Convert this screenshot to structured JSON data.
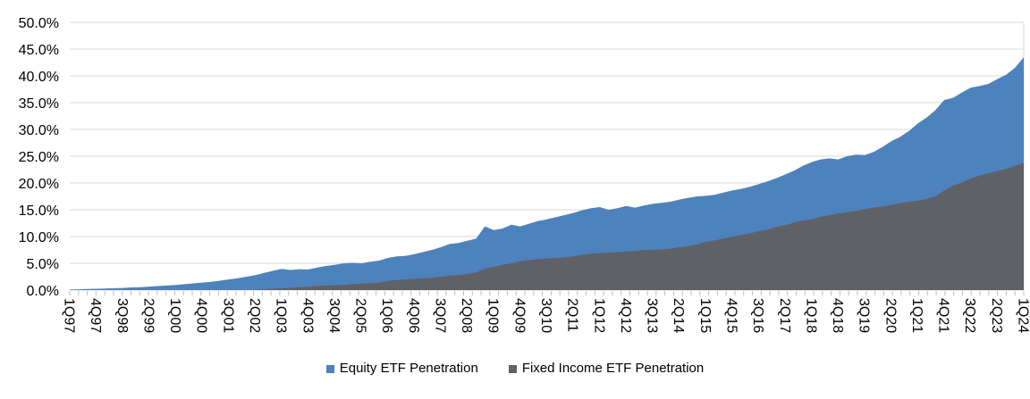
{
  "chart_data": {
    "type": "area",
    "title": "",
    "xlabel": "",
    "ylabel": "",
    "ylim": [
      0,
      50
    ],
    "grid": true,
    "legend_position": "bottom-center",
    "overlap_mode": "overlapping (not stacked); Fixed Income area drawn in front of Equity area",
    "colors": {
      "equity": "#4D82BC",
      "fixed_income": "#5F6166",
      "gridline": "#D9D9D9",
      "tick": "#BFBFBF",
      "text": "#000000",
      "background": "#FFFFFF"
    },
    "y_tick_labels": [
      "0.0%",
      "5.0%",
      "10.0%",
      "15.0%",
      "20.0%",
      "25.0%",
      "30.0%",
      "35.0%",
      "40.0%",
      "45.0%",
      "50.0%"
    ],
    "x_tick_labels_shown": [
      "1Q97",
      "4Q97",
      "3Q98",
      "2Q99",
      "1Q00",
      "4Q00",
      "3Q01",
      "2Q02",
      "1Q03",
      "4Q03",
      "3Q04",
      "2Q05",
      "1Q06",
      "4Q06",
      "3Q07",
      "2Q08",
      "1Q09",
      "4Q09",
      "3Q10",
      "2Q11",
      "1Q12",
      "4Q12",
      "3Q13",
      "2Q14",
      "1Q15",
      "4Q15",
      "3Q16",
      "2Q17",
      "1Q18",
      "4Q18",
      "3Q19",
      "2Q20",
      "1Q21",
      "4Q21",
      "3Q22",
      "2Q23",
      "1Q24"
    ],
    "x_label_interval": 3,
    "categories": [
      "1Q97",
      "2Q97",
      "3Q97",
      "4Q97",
      "1Q98",
      "2Q98",
      "3Q98",
      "4Q98",
      "1Q99",
      "2Q99",
      "3Q99",
      "4Q99",
      "1Q00",
      "2Q00",
      "3Q00",
      "4Q00",
      "1Q01",
      "2Q01",
      "3Q01",
      "4Q01",
      "1Q02",
      "2Q02",
      "3Q02",
      "4Q02",
      "1Q03",
      "2Q03",
      "3Q03",
      "4Q03",
      "1Q04",
      "2Q04",
      "3Q04",
      "4Q04",
      "1Q05",
      "2Q05",
      "3Q05",
      "4Q05",
      "1Q06",
      "2Q06",
      "3Q06",
      "4Q06",
      "1Q07",
      "2Q07",
      "3Q07",
      "4Q07",
      "1Q08",
      "2Q08",
      "3Q08",
      "4Q08",
      "1Q09",
      "2Q09",
      "3Q09",
      "4Q09",
      "1Q10",
      "2Q10",
      "3Q10",
      "4Q10",
      "1Q11",
      "2Q11",
      "3Q11",
      "4Q11",
      "1Q12",
      "2Q12",
      "3Q12",
      "4Q12",
      "1Q13",
      "2Q13",
      "3Q13",
      "4Q13",
      "1Q14",
      "2Q14",
      "3Q14",
      "4Q14",
      "1Q15",
      "2Q15",
      "3Q15",
      "4Q15",
      "1Q16",
      "2Q16",
      "3Q16",
      "4Q16",
      "1Q17",
      "2Q17",
      "3Q17",
      "4Q17",
      "1Q18",
      "2Q18",
      "3Q18",
      "4Q18",
      "1Q19",
      "2Q19",
      "3Q19",
      "4Q19",
      "1Q20",
      "2Q20",
      "3Q20",
      "4Q20",
      "1Q21",
      "2Q21",
      "3Q21",
      "4Q21",
      "1Q22",
      "2Q22",
      "3Q22",
      "4Q22",
      "1Q23",
      "2Q23",
      "3Q23",
      "4Q23",
      "1Q24"
    ],
    "series": [
      {
        "name": "Equity ETF Penetration",
        "color": "#4D82BC",
        "values": [
          0.1,
          0.15,
          0.2,
          0.25,
          0.3,
          0.35,
          0.4,
          0.5,
          0.55,
          0.65,
          0.75,
          0.85,
          0.95,
          1.1,
          1.25,
          1.4,
          1.55,
          1.75,
          2.0,
          2.2,
          2.5,
          2.8,
          3.2,
          3.6,
          3.95,
          3.75,
          3.9,
          3.85,
          4.2,
          4.5,
          4.7,
          5.0,
          5.1,
          5.0,
          5.3,
          5.5,
          6.0,
          6.3,
          6.4,
          6.7,
          7.1,
          7.5,
          8.0,
          8.6,
          8.8,
          9.2,
          9.6,
          11.9,
          11.2,
          11.5,
          12.2,
          11.9,
          12.4,
          12.9,
          13.2,
          13.6,
          14.0,
          14.4,
          14.9,
          15.3,
          15.5,
          15.0,
          15.3,
          15.7,
          15.4,
          15.8,
          16.1,
          16.3,
          16.5,
          16.9,
          17.2,
          17.5,
          17.6,
          17.8,
          18.2,
          18.6,
          18.9,
          19.3,
          19.8,
          20.3,
          20.9,
          21.6,
          22.3,
          23.2,
          23.9,
          24.4,
          24.6,
          24.4,
          25.0,
          25.3,
          25.2,
          25.8,
          26.7,
          27.8,
          28.6,
          29.7,
          31.1,
          32.2,
          33.6,
          35.5,
          35.9,
          36.9,
          37.8,
          38.1,
          38.5,
          39.4,
          40.2,
          41.5,
          43.5
        ]
      },
      {
        "name": "Fixed Income ETF Penetration",
        "color": "#5F6166",
        "values": [
          0,
          0,
          0,
          0,
          0,
          0,
          0,
          0,
          0,
          0,
          0,
          0,
          0,
          0,
          0,
          0,
          0,
          0,
          0,
          0,
          0.0,
          0.05,
          0.15,
          0.25,
          0.35,
          0.45,
          0.55,
          0.65,
          0.75,
          0.85,
          0.9,
          0.95,
          1.1,
          1.2,
          1.3,
          1.4,
          1.7,
          1.9,
          2.0,
          2.1,
          2.2,
          2.3,
          2.5,
          2.7,
          2.8,
          3.0,
          3.3,
          4.0,
          4.3,
          4.7,
          5.0,
          5.4,
          5.6,
          5.8,
          5.9,
          6.0,
          6.1,
          6.3,
          6.6,
          6.8,
          6.9,
          7.0,
          7.1,
          7.2,
          7.3,
          7.5,
          7.5,
          7.6,
          7.7,
          8.0,
          8.2,
          8.5,
          9.0,
          9.3,
          9.6,
          10.0,
          10.3,
          10.6,
          11.0,
          11.3,
          11.8,
          12.1,
          12.6,
          13.0,
          13.2,
          13.7,
          14.0,
          14.3,
          14.5,
          14.8,
          15.1,
          15.4,
          15.6,
          15.9,
          16.2,
          16.5,
          16.7,
          17.0,
          17.5,
          18.6,
          19.5,
          20.1,
          20.8,
          21.4,
          21.8,
          22.2,
          22.6,
          23.2,
          23.7
        ]
      }
    ]
  },
  "legend": {
    "equity_label": "Equity ETF Penetration",
    "fixed_income_label": "Fixed Income ETF Penetration"
  }
}
